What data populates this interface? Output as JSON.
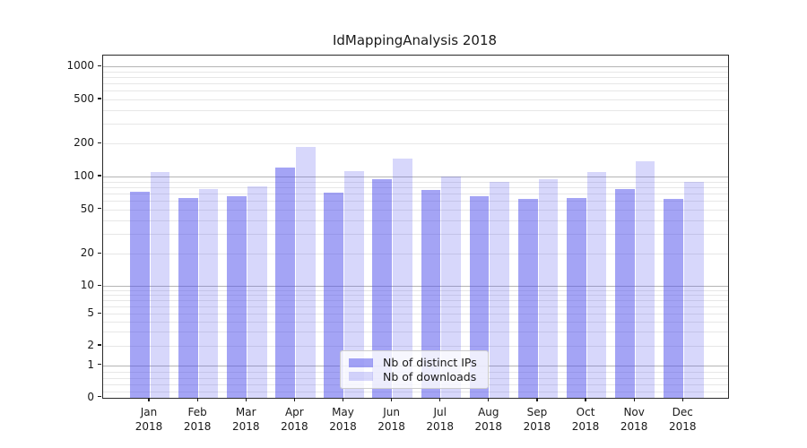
{
  "chart": {
    "title": "IdMappingAnalysis 2018"
  },
  "chart_data": {
    "type": "bar",
    "title": "IdMappingAnalysis 2018",
    "categories": [
      "Jan 2018",
      "Feb 2018",
      "Mar 2018",
      "Apr 2018",
      "May 2018",
      "Jun 2018",
      "Jul 2018",
      "Aug 2018",
      "Sep 2018",
      "Oct 2018",
      "Nov 2018",
      "Dec 2018"
    ],
    "series": [
      {
        "name": "Nb of distinct IPs",
        "color": "rgba(80,80,236,0.52)",
        "values": [
          72,
          64,
          66,
          121,
          71,
          94,
          76,
          66,
          62,
          64,
          77,
          62
        ]
      },
      {
        "name": "Nb of downloads",
        "color": "rgba(80,80,236,0.23)",
        "values": [
          110,
          77,
          82,
          185,
          111,
          147,
          100,
          90,
          95,
          110,
          138,
          90
        ]
      }
    ],
    "xlabel": "",
    "ylabel": "",
    "yscale": "asinh-log",
    "yticks": [
      0,
      1,
      2,
      5,
      10,
      20,
      50,
      100,
      200,
      500,
      1000
    ],
    "ylim": [
      0,
      1400
    ],
    "grid": true,
    "legend_position": "lower center inside plot",
    "colors": {
      "major_grid": "#b4b4b4",
      "minor_grid": "#e7e7e7",
      "axis": "#2a2a2a",
      "bar_base": "#5050ec"
    }
  }
}
